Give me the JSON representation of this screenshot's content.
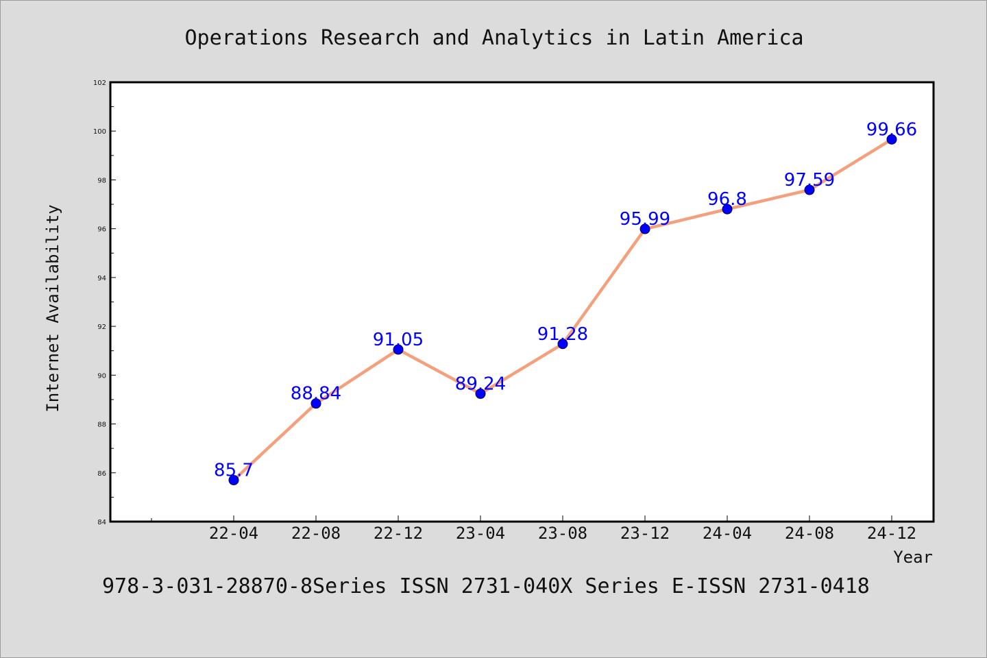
{
  "colors": {
    "line": "#f4a07c",
    "marker": "#0000ff",
    "label": "#0000ff",
    "background": "#dcdcdc",
    "plot_background": "#ffffff"
  },
  "footer": "978-3-031-28870-8Series ISSN 2731-040X Series E-ISSN 2731-0418",
  "chart_data": {
    "type": "line",
    "title": "Operations Research and Analytics in Latin America",
    "xlabel": "Year",
    "ylabel": "Internet Availability",
    "categories": [
      "22-04",
      "22-08",
      "22-12",
      "23-04",
      "23-08",
      "23-12",
      "24-04",
      "24-08",
      "24-12"
    ],
    "series": [
      {
        "values": [
          85.7,
          88.84,
          91.05,
          89.24,
          91.28,
          95.99,
          96.8,
          97.59,
          99.66
        ]
      }
    ],
    "data_labels": [
      "85.7",
      "88.84",
      "91.05",
      "89.24",
      "91.28",
      "95.99",
      "96.8",
      "97.59",
      "99.66"
    ],
    "ylim": [
      84,
      102
    ],
    "yticks": [
      84,
      86,
      88,
      90,
      92,
      94,
      96,
      98,
      100,
      102
    ],
    "grid": false,
    "legend": "none"
  }
}
